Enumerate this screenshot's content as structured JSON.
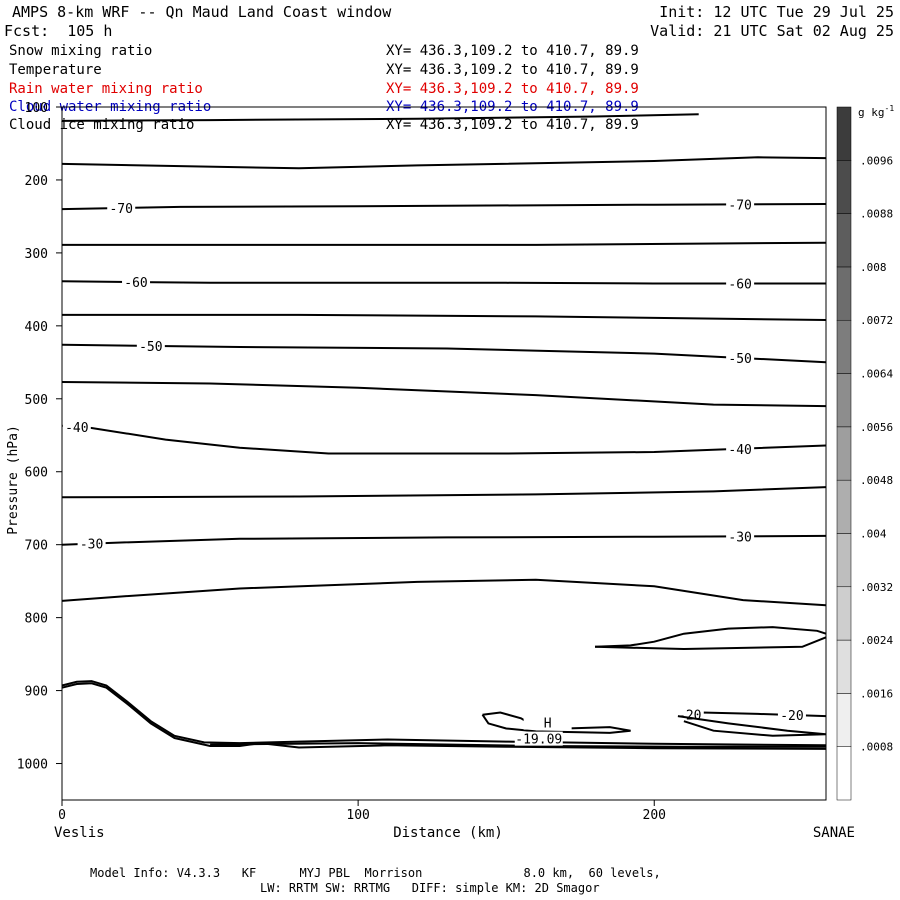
{
  "header": {
    "title": "AMPS 8-km WRF -- Qn Maud Land Coast window",
    "init": "Init: 12 UTC Tue 29 Jul 25",
    "forecast": "Fcst:  105 h",
    "valid": "Valid: 21 UTC Sat 02 Aug 25"
  },
  "fields": [
    {
      "name": "Snow mixing ratio",
      "xy": "XY= 436.3,109.2 to 410.7, 89.9",
      "color": "#000000"
    },
    {
      "name": "Temperature",
      "xy": "XY= 436.3,109.2 to 410.7, 89.9",
      "color": "#000000"
    },
    {
      "name": "Rain water mixing ratio",
      "xy": "XY= 436.3,109.2 to 410.7, 89.9",
      "color": "#e00000"
    },
    {
      "name": "Cloud water mixing ratio",
      "xy": "XY= 436.3,109.2 to 410.7, 89.9",
      "color": "#0000c0"
    },
    {
      "name": "Cloud ice mixing ratio",
      "xy": "XY= 436.3,109.2 to 410.7, 89.9",
      "color": "#000000"
    }
  ],
  "footer": {
    "line1": "Model Info: V4.3.3   KF      MYJ PBL  Morrison              8.0 km,  60 levels,",
    "line2": "LW: RRTM SW: RRTMG   DIFF: simple KM: 2D Smagor"
  },
  "chart_data": {
    "type": "contour",
    "xlabel": "Distance (km)",
    "ylabel": "Pressure (hPa)",
    "xlim": [
      0,
      258
    ],
    "ylim": [
      1050,
      100
    ],
    "x_ticks": [
      0,
      100,
      200
    ],
    "y_ticks": [
      100,
      200,
      300,
      400,
      500,
      600,
      700,
      800,
      900,
      1000
    ],
    "left_endpoint": "Veslis",
    "right_endpoint": "SANAE",
    "contour_levels": [
      {
        "label": "-70",
        "points": [
          [
            0,
            240
          ],
          [
            40,
            237
          ],
          [
            100,
            236
          ],
          [
            200,
            234
          ],
          [
            258,
            233
          ]
        ]
      },
      {
        "label": "-60",
        "points": [
          [
            0,
            339
          ],
          [
            50,
            341
          ],
          [
            100,
            341
          ],
          [
            150,
            341
          ],
          [
            200,
            342
          ],
          [
            258,
            342
          ]
        ]
      },
      {
        "label": "-50",
        "points": [
          [
            0,
            426
          ],
          [
            60,
            429
          ],
          [
            130,
            431
          ],
          [
            200,
            438
          ],
          [
            258,
            450
          ]
        ]
      },
      {
        "label": "-40",
        "points": [
          [
            0,
            537
          ],
          [
            10,
            540
          ],
          [
            35,
            556
          ],
          [
            60,
            567
          ],
          [
            90,
            575
          ],
          [
            150,
            575
          ],
          [
            200,
            573
          ],
          [
            258,
            564
          ]
        ]
      },
      {
        "label": "-30",
        "points": [
          [
            0,
            700
          ],
          [
            20,
            697
          ],
          [
            60,
            692
          ],
          [
            130,
            690
          ],
          [
            200,
            689
          ],
          [
            258,
            688
          ]
        ]
      },
      {
        "label": "-20",
        "points": [
          [
            208,
            935
          ],
          [
            216,
            930
          ],
          [
            235,
            932
          ],
          [
            258,
            935
          ]
        ]
      },
      {
        "label": "",
        "points": [
          [
            0,
            119
          ],
          [
            50,
            118
          ],
          [
            120,
            116
          ],
          [
            180,
            113
          ],
          [
            215,
            110
          ]
        ]
      },
      {
        "label": "",
        "points": [
          [
            0,
            178
          ],
          [
            40,
            181
          ],
          [
            80,
            184
          ],
          [
            120,
            180
          ],
          [
            200,
            174
          ],
          [
            235,
            169
          ],
          [
            258,
            170
          ]
        ]
      },
      {
        "label": "",
        "points": [
          [
            0,
            289
          ],
          [
            80,
            289
          ],
          [
            160,
            289
          ],
          [
            258,
            286
          ]
        ]
      },
      {
        "label": "",
        "points": [
          [
            0,
            385
          ],
          [
            80,
            385
          ],
          [
            160,
            387
          ],
          [
            258,
            392
          ]
        ]
      },
      {
        "label": "",
        "points": [
          [
            0,
            477
          ],
          [
            50,
            479
          ],
          [
            100,
            485
          ],
          [
            160,
            495
          ],
          [
            220,
            508
          ],
          [
            258,
            510
          ]
        ]
      },
      {
        "label": "",
        "points": [
          [
            0,
            635
          ],
          [
            80,
            634
          ],
          [
            160,
            631
          ],
          [
            220,
            627
          ],
          [
            258,
            621
          ]
        ]
      },
      {
        "label": "",
        "points": [
          [
            0,
            777
          ],
          [
            20,
            771
          ],
          [
            60,
            760
          ],
          [
            120,
            751
          ],
          [
            160,
            748
          ],
          [
            200,
            757
          ],
          [
            230,
            776
          ],
          [
            258,
            783
          ]
        ]
      },
      {
        "label": "",
        "points": [
          [
            180,
            840
          ],
          [
            192,
            838
          ],
          [
            200,
            833
          ],
          [
            210,
            822
          ],
          [
            225,
            815
          ],
          [
            240,
            813
          ],
          [
            255,
            818
          ],
          [
            258,
            822
          ]
        ]
      },
      {
        "label": "",
        "points": [
          [
            180,
            840
          ],
          [
            210,
            843
          ],
          [
            250,
            840
          ],
          [
            258,
            827
          ]
        ]
      }
    ],
    "annotations": [
      {
        "text": "H",
        "x": 164,
        "y": 948
      },
      {
        "text": "-19.09",
        "x": 161,
        "y": 970
      }
    ],
    "colorbar": {
      "unit": "g kg-1",
      "labels": [
        ".0008",
        ".0016",
        ".0024",
        ".0032",
        ".004",
        ".0048",
        ".0056",
        ".0064",
        ".0072",
        ".008",
        ".0088",
        ".0096"
      ]
    }
  }
}
